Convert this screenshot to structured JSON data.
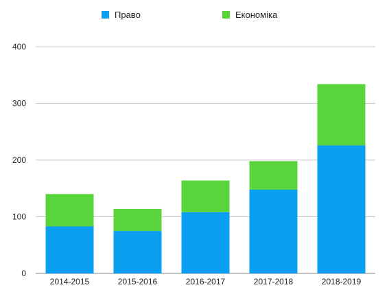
{
  "chart_data": {
    "type": "bar",
    "stacked": true,
    "categories": [
      "2014-2015",
      "2015-2016",
      "2016-2017",
      "2017-2018",
      "2018-2019"
    ],
    "series": [
      {
        "name": "Право",
        "color": "#0a9ff0",
        "values": [
          83,
          75,
          108,
          148,
          226
        ]
      },
      {
        "name": "Економіка",
        "color": "#5ad43b",
        "values": [
          57,
          39,
          56,
          50,
          108
        ]
      }
    ],
    "ylim": [
      0,
      400
    ],
    "yticks": [
      0,
      100,
      200,
      300,
      400
    ],
    "grid": true,
    "legend_position": "top"
  }
}
